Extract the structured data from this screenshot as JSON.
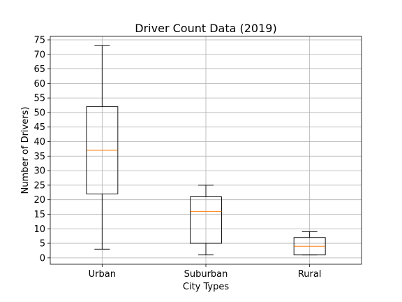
{
  "chart_data": {
    "type": "boxplot",
    "title": "Driver Count Data (2019)",
    "xlabel": "City Types",
    "ylabel": "Number of Drivers)",
    "categories": [
      "Urban",
      "Suburban",
      "Rural"
    ],
    "boxes": [
      {
        "name": "Urban",
        "whisker_low": 3,
        "q1": 22,
        "median": 37,
        "q3": 52,
        "whisker_high": 73
      },
      {
        "name": "Suburban",
        "whisker_low": 1,
        "q1": 5,
        "median": 16,
        "q3": 21,
        "whisker_high": 25
      },
      {
        "name": "Rural",
        "whisker_low": 1,
        "q1": 1,
        "median": 4,
        "q3": 7,
        "whisker_high": 9
      }
    ],
    "ylim": [
      -2.2,
      76.2
    ],
    "yticks": [
      0,
      5,
      10,
      15,
      20,
      25,
      30,
      35,
      40,
      45,
      50,
      55,
      60,
      65,
      70,
      75
    ],
    "grid": true,
    "colors": {
      "box": "#000000",
      "median": "#ff7f0e",
      "grid": "#b0b0b0"
    }
  }
}
